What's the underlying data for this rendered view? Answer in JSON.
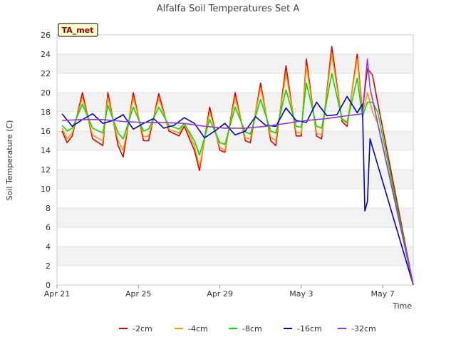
{
  "chart_data": {
    "type": "line",
    "title": "Alfalfa Soil Temperatures Set A",
    "badge": "TA_met",
    "xlabel": "Time",
    "ylabel": "Soil Temperature (C)",
    "xlim": [
      "2024-04-21",
      "2024-05-08T12:00"
    ],
    "ylim": [
      0,
      26
    ],
    "y_ticks": [
      0,
      2,
      4,
      6,
      8,
      10,
      12,
      14,
      16,
      18,
      20,
      22,
      24,
      26
    ],
    "x_ticks": [
      {
        "value": "2024-04-21",
        "label": "Apr 21"
      },
      {
        "value": "2024-04-25",
        "label": "Apr 25"
      },
      {
        "value": "2024-04-29",
        "label": "Apr 29"
      },
      {
        "value": "2024-05-03",
        "label": "May 3"
      },
      {
        "value": "2024-05-07",
        "label": "May 7"
      }
    ],
    "grid": "horizontal bands",
    "legend_position": "bottom",
    "series": [
      {
        "name": "-2cm",
        "color": "#dd0000",
        "points": [
          [
            "2024-04-21T06:00",
            16.0
          ],
          [
            "2024-04-21T12:00",
            14.8
          ],
          [
            "2024-04-21T18:00",
            15.5
          ],
          [
            "2024-04-22T06:00",
            20.0
          ],
          [
            "2024-04-22T18:00",
            15.2
          ],
          [
            "2024-04-23T06:00",
            14.5
          ],
          [
            "2024-04-23T12:00",
            20.0
          ],
          [
            "2024-04-24T00:00",
            14.5
          ],
          [
            "2024-04-24T06:00",
            13.3
          ],
          [
            "2024-04-24T18:00",
            20.0
          ],
          [
            "2024-04-25T06:00",
            15.0
          ],
          [
            "2024-04-25T12:00",
            15.0
          ],
          [
            "2024-04-26T00:00",
            19.9
          ],
          [
            "2024-04-26T12:00",
            16.0
          ],
          [
            "2024-04-27T00:00",
            15.5
          ],
          [
            "2024-04-27T06:00",
            16.5
          ],
          [
            "2024-04-27T18:00",
            14.0
          ],
          [
            "2024-04-28T00:00",
            11.9
          ],
          [
            "2024-04-28T12:00",
            18.5
          ],
          [
            "2024-04-29T00:00",
            14.0
          ],
          [
            "2024-04-29T06:00",
            13.8
          ],
          [
            "2024-04-29T18:00",
            20.0
          ],
          [
            "2024-04-30T06:00",
            15.0
          ],
          [
            "2024-04-30T12:00",
            14.8
          ],
          [
            "2024-05-01T00:00",
            21.0
          ],
          [
            "2024-05-01T12:00",
            15.0
          ],
          [
            "2024-05-01T18:00",
            14.5
          ],
          [
            "2024-05-02T06:00",
            22.8
          ],
          [
            "2024-05-02T18:00",
            15.5
          ],
          [
            "2024-05-03T00:00",
            15.5
          ],
          [
            "2024-05-03T06:00",
            23.5
          ],
          [
            "2024-05-03T18:00",
            15.5
          ],
          [
            "2024-05-04T00:00",
            15.2
          ],
          [
            "2024-05-04T12:00",
            24.8
          ],
          [
            "2024-05-05T00:00",
            17.0
          ],
          [
            "2024-05-05T06:00",
            16.5
          ],
          [
            "2024-05-05T18:00",
            24.0
          ],
          [
            "2024-05-06T00:00",
            18.0
          ],
          [
            "2024-05-06T06:00",
            22.5
          ],
          [
            "2024-05-06T12:00",
            21.8
          ],
          [
            "2024-05-06T18:00",
            19.0
          ],
          [
            "2024-05-08T12:00",
            0.0
          ]
        ]
      },
      {
        "name": "-4cm",
        "color": "#ff9900",
        "points": [
          [
            "2024-04-21T06:00",
            16.3
          ],
          [
            "2024-04-21T12:00",
            15.2
          ],
          [
            "2024-04-21T18:00",
            15.8
          ],
          [
            "2024-04-22T06:00",
            19.5
          ],
          [
            "2024-04-22T18:00",
            15.6
          ],
          [
            "2024-04-23T06:00",
            15.0
          ],
          [
            "2024-04-23T12:00",
            19.5
          ],
          [
            "2024-04-24T00:00",
            15.0
          ],
          [
            "2024-04-24T06:00",
            14.0
          ],
          [
            "2024-04-24T18:00",
            19.5
          ],
          [
            "2024-04-25T06:00",
            15.4
          ],
          [
            "2024-04-25T12:00",
            15.5
          ],
          [
            "2024-04-26T00:00",
            19.4
          ],
          [
            "2024-04-26T12:00",
            16.2
          ],
          [
            "2024-04-27T00:00",
            15.8
          ],
          [
            "2024-04-27T06:00",
            16.8
          ],
          [
            "2024-04-27T18:00",
            14.5
          ],
          [
            "2024-04-28T00:00",
            12.3
          ],
          [
            "2024-04-28T12:00",
            18.0
          ],
          [
            "2024-04-29T00:00",
            14.3
          ],
          [
            "2024-04-29T06:00",
            14.0
          ],
          [
            "2024-04-29T18:00",
            19.5
          ],
          [
            "2024-04-30T06:00",
            15.3
          ],
          [
            "2024-04-30T12:00",
            15.2
          ],
          [
            "2024-05-01T00:00",
            20.5
          ],
          [
            "2024-05-01T12:00",
            15.4
          ],
          [
            "2024-05-01T18:00",
            15.0
          ],
          [
            "2024-05-02T06:00",
            22.0
          ],
          [
            "2024-05-02T18:00",
            15.9
          ],
          [
            "2024-05-03T00:00",
            15.8
          ],
          [
            "2024-05-03T06:00",
            22.8
          ],
          [
            "2024-05-03T18:00",
            15.8
          ],
          [
            "2024-05-04T00:00",
            15.6
          ],
          [
            "2024-05-04T12:00",
            24.0
          ],
          [
            "2024-05-05T00:00",
            17.2
          ],
          [
            "2024-05-05T06:00",
            16.8
          ],
          [
            "2024-05-05T18:00",
            23.5
          ],
          [
            "2024-05-06T00:00",
            17.8
          ],
          [
            "2024-05-06T06:00",
            20.0
          ],
          [
            "2024-05-06T12:00",
            18.0
          ],
          [
            "2024-05-06T18:00",
            16.8
          ],
          [
            "2024-05-08T12:00",
            0.0
          ]
        ]
      },
      {
        "name": "-8cm",
        "color": "#00dd00",
        "points": [
          [
            "2024-04-21T06:00",
            16.6
          ],
          [
            "2024-04-21T12:00",
            16.0
          ],
          [
            "2024-04-21T18:00",
            16.3
          ],
          [
            "2024-04-22T06:00",
            18.8
          ],
          [
            "2024-04-22T18:00",
            16.3
          ],
          [
            "2024-04-23T06:00",
            15.8
          ],
          [
            "2024-04-23T12:00",
            18.7
          ],
          [
            "2024-04-24T00:00",
            15.8
          ],
          [
            "2024-04-24T06:00",
            15.2
          ],
          [
            "2024-04-24T18:00",
            18.5
          ],
          [
            "2024-04-25T06:00",
            16.0
          ],
          [
            "2024-04-25T12:00",
            16.2
          ],
          [
            "2024-04-26T00:00",
            18.5
          ],
          [
            "2024-04-26T12:00",
            16.6
          ],
          [
            "2024-04-27T00:00",
            16.2
          ],
          [
            "2024-04-27T06:00",
            16.8
          ],
          [
            "2024-04-27T18:00",
            15.0
          ],
          [
            "2024-04-28T00:00",
            13.5
          ],
          [
            "2024-04-28T12:00",
            17.2
          ],
          [
            "2024-04-29T00:00",
            14.8
          ],
          [
            "2024-04-29T06:00",
            14.6
          ],
          [
            "2024-04-29T18:00",
            18.5
          ],
          [
            "2024-04-30T06:00",
            15.9
          ],
          [
            "2024-04-30T12:00",
            15.7
          ],
          [
            "2024-05-01T00:00",
            19.3
          ],
          [
            "2024-05-01T12:00",
            16.0
          ],
          [
            "2024-05-01T18:00",
            15.8
          ],
          [
            "2024-05-02T06:00",
            20.3
          ],
          [
            "2024-05-02T18:00",
            16.5
          ],
          [
            "2024-05-03T00:00",
            16.4
          ],
          [
            "2024-05-03T06:00",
            21.0
          ],
          [
            "2024-05-03T18:00",
            16.5
          ],
          [
            "2024-05-04T00:00",
            16.3
          ],
          [
            "2024-05-04T12:00",
            22.0
          ],
          [
            "2024-05-05T00:00",
            17.3
          ],
          [
            "2024-05-05T06:00",
            16.9
          ],
          [
            "2024-05-05T18:00",
            21.5
          ],
          [
            "2024-05-06T00:00",
            17.5
          ],
          [
            "2024-05-06T06:00",
            19.0
          ],
          [
            "2024-05-06T12:00",
            19.0
          ],
          [
            "2024-05-06T18:00",
            18.0
          ],
          [
            "2024-05-08T12:00",
            0.0
          ]
        ]
      },
      {
        "name": "-16cm",
        "color": "#0000cc",
        "points": [
          [
            "2024-04-21T06:00",
            17.8
          ],
          [
            "2024-04-21T18:00",
            16.5
          ],
          [
            "2024-04-22T06:00",
            17.2
          ],
          [
            "2024-04-22T18:00",
            17.8
          ],
          [
            "2024-04-23T06:00",
            16.8
          ],
          [
            "2024-04-23T18:00",
            17.1
          ],
          [
            "2024-04-24T06:00",
            17.7
          ],
          [
            "2024-04-24T18:00",
            16.2
          ],
          [
            "2024-04-25T06:00",
            16.8
          ],
          [
            "2024-04-25T18:00",
            17.3
          ],
          [
            "2024-04-26T06:00",
            16.3
          ],
          [
            "2024-04-26T18:00",
            16.6
          ],
          [
            "2024-04-27T06:00",
            17.4
          ],
          [
            "2024-04-27T18:00",
            16.8
          ],
          [
            "2024-04-28T06:00",
            15.3
          ],
          [
            "2024-04-28T18:00",
            16.0
          ],
          [
            "2024-04-29T06:00",
            16.8
          ],
          [
            "2024-04-29T18:00",
            15.6
          ],
          [
            "2024-04-30T06:00",
            16.0
          ],
          [
            "2024-04-30T18:00",
            17.5
          ],
          [
            "2024-05-01T06:00",
            16.6
          ],
          [
            "2024-05-01T18:00",
            16.5
          ],
          [
            "2024-05-02T06:00",
            18.4
          ],
          [
            "2024-05-02T18:00",
            17.1
          ],
          [
            "2024-05-03T06:00",
            16.9
          ],
          [
            "2024-05-03T18:00",
            19.0
          ],
          [
            "2024-05-04T06:00",
            17.6
          ],
          [
            "2024-05-04T18:00",
            17.7
          ],
          [
            "2024-05-05T06:00",
            19.6
          ],
          [
            "2024-05-05T18:00",
            17.9
          ],
          [
            "2024-05-06T00:00",
            18.8
          ],
          [
            "2024-05-06T03:00",
            7.7
          ],
          [
            "2024-05-06T06:00",
            8.7
          ],
          [
            "2024-05-06T09:00",
            15.2
          ],
          [
            "2024-05-08T12:00",
            0.0
          ]
        ]
      },
      {
        "name": "-32cm",
        "color": "#9933ee",
        "points": [
          [
            "2024-04-21T06:00",
            17.1
          ],
          [
            "2024-04-22T06:00",
            17.2
          ],
          [
            "2024-04-23T06:00",
            17.2
          ],
          [
            "2024-04-24T06:00",
            17.0
          ],
          [
            "2024-04-25T06:00",
            16.9
          ],
          [
            "2024-04-26T06:00",
            16.9
          ],
          [
            "2024-04-27T06:00",
            16.8
          ],
          [
            "2024-04-28T06:00",
            16.5
          ],
          [
            "2024-04-29T06:00",
            16.3
          ],
          [
            "2024-04-30T06:00",
            16.3
          ],
          [
            "2024-05-01T06:00",
            16.5
          ],
          [
            "2024-05-02T06:00",
            16.8
          ],
          [
            "2024-05-03T06:00",
            17.1
          ],
          [
            "2024-05-04T06:00",
            17.3
          ],
          [
            "2024-05-05T06:00",
            17.6
          ],
          [
            "2024-05-06T00:00",
            17.8
          ],
          [
            "2024-05-06T06:00",
            23.5
          ],
          [
            "2024-05-06T09:00",
            20.5
          ],
          [
            "2024-05-08T12:00",
            0.0
          ]
        ]
      }
    ]
  }
}
